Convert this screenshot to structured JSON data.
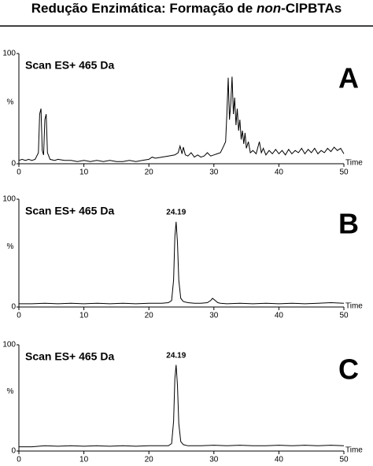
{
  "title": [
    "Redução Enzimática: Formação de ",
    "non",
    "-ClPBTAs"
  ],
  "chart_data": [
    {
      "type": "line",
      "label": "Scan ES+ 465 Da",
      "panel": "A",
      "ylabel": "%",
      "xlabel": "Time",
      "xlim": [
        0,
        50
      ],
      "xticks": [
        0,
        10,
        20,
        30,
        40,
        50
      ],
      "ylim": [
        0,
        100
      ],
      "yticks": [
        0,
        100
      ],
      "color": "#000000",
      "x": [
        0,
        0.5,
        1,
        1.5,
        2,
        2.5,
        3,
        3.2,
        3.4,
        3.6,
        3.8,
        4.0,
        4.2,
        4.4,
        4.8,
        5.5,
        6,
        7,
        8,
        9,
        10,
        11,
        12,
        13,
        14,
        15,
        16,
        17,
        18,
        19,
        20,
        20.5,
        21,
        22,
        23,
        24,
        24.5,
        24.8,
        25.1,
        25.3,
        25.6,
        26,
        26.5,
        27,
        27.5,
        28,
        28.5,
        29,
        29.5,
        30,
        30.5,
        31,
        31.5,
        31.8,
        32,
        32.2,
        32.4,
        32.6,
        32.8,
        33,
        33.2,
        33.4,
        33.6,
        33.8,
        34,
        34.2,
        34.4,
        34.6,
        34.8,
        35,
        35.3,
        35.6,
        36,
        36.5,
        37,
        37.3,
        37.6,
        38,
        38.5,
        39,
        39.5,
        40,
        40.5,
        41,
        41.5,
        42,
        42.5,
        43,
        43.5,
        44,
        44.5,
        45,
        45.5,
        46,
        46.5,
        47,
        47.5,
        48,
        48.5,
        49,
        49.5,
        50
      ],
      "values": [
        3,
        4,
        3,
        4,
        3,
        4,
        10,
        45,
        50,
        12,
        8,
        40,
        45,
        10,
        4,
        3,
        4,
        3,
        3,
        2,
        3,
        2,
        3,
        2,
        3,
        2,
        2,
        3,
        2,
        3,
        4,
        6,
        5,
        6,
        7,
        8,
        10,
        16,
        9,
        15,
        8,
        7,
        10,
        6,
        8,
        6,
        7,
        10,
        7,
        8,
        9,
        10,
        16,
        20,
        45,
        78,
        40,
        55,
        79,
        45,
        60,
        35,
        50,
        30,
        40,
        22,
        30,
        18,
        28,
        14,
        20,
        10,
        12,
        9,
        20,
        10,
        14,
        8,
        12,
        9,
        13,
        9,
        12,
        8,
        13,
        9,
        12,
        10,
        14,
        9,
        13,
        10,
        14,
        9,
        12,
        10,
        14,
        11,
        15,
        12,
        14,
        9
      ]
    },
    {
      "type": "line",
      "label": "Scan ES+ 465 Da",
      "panel": "B",
      "ylabel": "%",
      "xlabel": "Time",
      "peak_label": 24.19,
      "xlim": [
        0,
        50
      ],
      "xticks": [
        0,
        10,
        20,
        30,
        40,
        50
      ],
      "ylim": [
        0,
        100
      ],
      "yticks": [
        0,
        100
      ],
      "color": "#000000",
      "x": [
        0,
        2,
        4,
        6,
        8,
        10,
        12,
        14,
        16,
        18,
        20,
        22,
        23,
        23.5,
        23.8,
        24.0,
        24.19,
        24.4,
        24.6,
        24.9,
        25.3,
        26,
        27,
        28,
        29,
        29.5,
        29.8,
        30.2,
        30.6,
        31,
        32,
        34,
        36,
        38,
        40,
        42,
        44,
        46,
        48,
        50
      ],
      "values": [
        3,
        3,
        3.5,
        3,
        3.5,
        3,
        3.5,
        3,
        3.5,
        3,
        3.5,
        3.5,
        4,
        6,
        25,
        65,
        79,
        60,
        25,
        8,
        5,
        4,
        3.5,
        3.5,
        4,
        6,
        8,
        6,
        4,
        3.5,
        3,
        3.5,
        3,
        3.5,
        3,
        3.5,
        3,
        3.5,
        4,
        3.5
      ]
    },
    {
      "type": "line",
      "label": "Scan ES+ 465 Da",
      "panel": "C",
      "ylabel": "%",
      "xlabel": "Time",
      "peak_label": 24.19,
      "xlim": [
        0,
        50
      ],
      "xticks": [
        0,
        10,
        20,
        30,
        40,
        50
      ],
      "ylim": [
        0,
        100
      ],
      "yticks": [
        0,
        100
      ],
      "color": "#000000",
      "x": [
        0,
        2,
        4,
        6,
        8,
        10,
        12,
        14,
        16,
        18,
        20,
        22,
        23,
        23.5,
        23.8,
        24.0,
        24.19,
        24.4,
        24.6,
        24.9,
        25.3,
        26,
        28,
        30,
        32,
        34,
        36,
        38,
        40,
        42,
        44,
        46,
        48,
        50
      ],
      "values": [
        4,
        4,
        5,
        4.5,
        5,
        4.5,
        5,
        4.5,
        5,
        4.5,
        5,
        5,
        5,
        7,
        28,
        68,
        81,
        62,
        26,
        9,
        6,
        5,
        5,
        5.5,
        5,
        5.5,
        5,
        5,
        5.5,
        5,
        5.5,
        5,
        5.5,
        5
      ]
    }
  ]
}
